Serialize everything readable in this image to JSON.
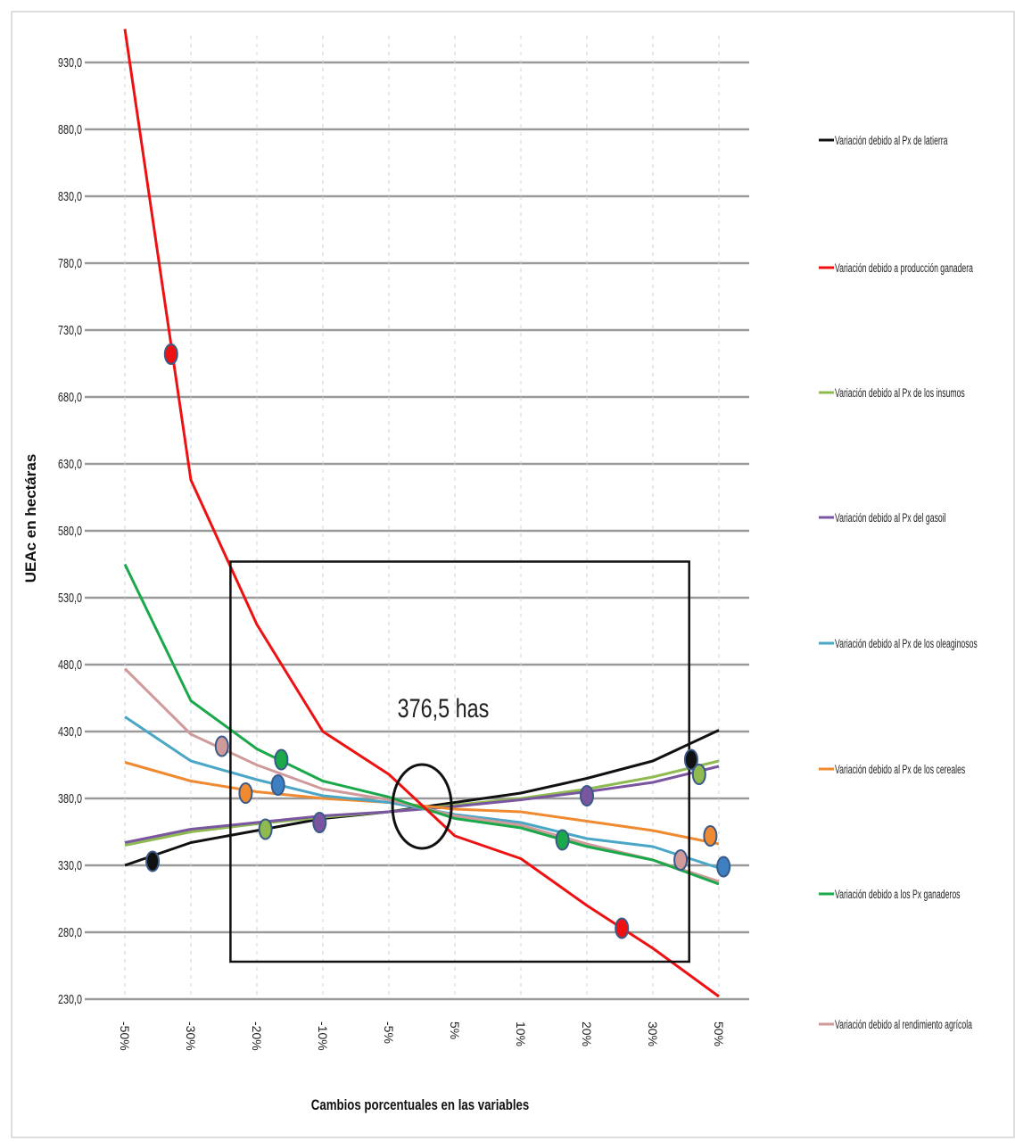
{
  "chart_data": {
    "type": "line",
    "title": "",
    "ylabel": "UEAc en hectáras",
    "xlabel": "Cambios porcentuales en las variables",
    "categories": [
      "-50%",
      "-30%",
      "-20%",
      "-10%",
      "-5%",
      "5%",
      "10%",
      "20%",
      "30%",
      "50%"
    ],
    "y_ticks": [
      "930,0",
      "880,0",
      "830,0",
      "780,0",
      "730,0",
      "680,0",
      "630,0",
      "580,0",
      "530,0",
      "480,0",
      "430,0",
      "380,0",
      "330,0",
      "280,0",
      "230,0"
    ],
    "ylim": [
      230,
      950
    ],
    "grid": true,
    "legend_position": "right",
    "annotation": "376,5 has",
    "series": [
      {
        "name": "Variación debido al Px de latierra",
        "color": "#111111",
        "values": [
          330,
          347,
          356,
          365,
          370,
          377,
          384,
          395,
          408,
          431
        ]
      },
      {
        "name": "Variación debido a producción ganadera",
        "color": "#ee1111",
        "values": [
          955,
          618,
          510,
          430,
          398,
          352,
          335,
          300,
          268,
          232
        ]
      },
      {
        "name": "Variación debido al Px de los insumos",
        "color": "#8fba50",
        "values": [
          345,
          355,
          361,
          366,
          370,
          375,
          380,
          387,
          396,
          408
        ]
      },
      {
        "name": "Variación debido al Px del gasoil",
        "color": "#7a55a0",
        "values": [
          347,
          357,
          362,
          367,
          370,
          374,
          379,
          385,
          392,
          404
        ]
      },
      {
        "name": "Variación debido al Px de los oleaginosos",
        "color": "#4aa6c6",
        "values": [
          441,
          408,
          394,
          382,
          377,
          368,
          362,
          350,
          344,
          328
        ]
      },
      {
        "name": "Variación debido al Px de los cereales",
        "color": "#f08a30",
        "values": [
          407,
          393,
          385,
          380,
          377,
          372,
          370,
          363,
          356,
          346
        ]
      },
      {
        "name": "Variación debido a los Px ganaderos",
        "color": "#1aa84a",
        "values": [
          555,
          453,
          417,
          393,
          381,
          365,
          358,
          344,
          334,
          316
        ]
      },
      {
        "name": "Variación debido al rendimiento agrícola",
        "color": "#d09a9a",
        "values": [
          477,
          428,
          405,
          387,
          379,
          367,
          360,
          346,
          334,
          318
        ]
      }
    ],
    "markers": [
      {
        "series": 0,
        "color": "#111111",
        "x": 0.42,
        "y": 333
      },
      {
        "series": 0,
        "color": "#111111",
        "x": 8.58,
        "y": 409
      },
      {
        "series": 1,
        "color": "#ee1111",
        "x": 0.7,
        "y": 712
      },
      {
        "series": 1,
        "color": "#ee1111",
        "x": 7.53,
        "y": 283
      },
      {
        "series": 2,
        "color": "#8fba50",
        "x": 2.13,
        "y": 357
      },
      {
        "series": 2,
        "color": "#8fba50",
        "x": 8.7,
        "y": 398
      },
      {
        "series": 3,
        "color": "#7a55a0",
        "x": 2.95,
        "y": 362
      },
      {
        "series": 3,
        "color": "#7a55a0",
        "x": 7.0,
        "y": 382
      },
      {
        "series": 4,
        "color": "#3d7fc0",
        "x": 2.32,
        "y": 390
      },
      {
        "series": 4,
        "color": "#3d7fc0",
        "x": 9.07,
        "y": 329
      },
      {
        "series": 5,
        "color": "#f08a30",
        "x": 1.83,
        "y": 384
      },
      {
        "series": 5,
        "color": "#f08a30",
        "x": 8.87,
        "y": 352
      },
      {
        "series": 6,
        "color": "#1aa84a",
        "x": 2.37,
        "y": 409
      },
      {
        "series": 6,
        "color": "#1aa84a",
        "x": 6.63,
        "y": 349
      },
      {
        "series": 7,
        "color": "#d09a9a",
        "x": 1.47,
        "y": 419
      },
      {
        "series": 7,
        "color": "#d09a9a",
        "x": 8.42,
        "y": 334
      }
    ],
    "highlight_box": {
      "x_from": 1.6,
      "x_to": 8.55,
      "y_from": 258,
      "y_to": 557
    },
    "highlight_circle": {
      "x": 5.38,
      "y": 374
    }
  }
}
